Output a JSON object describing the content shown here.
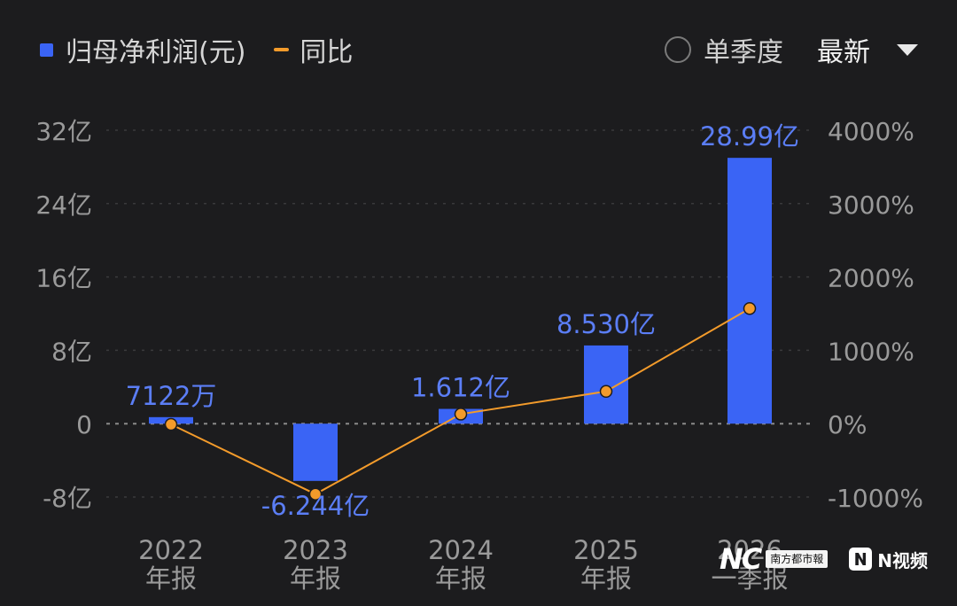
{
  "legend": {
    "bar_label": "归母净利润(元)",
    "line_label": "同比"
  },
  "controls": {
    "single_quarter_label": "单季度",
    "latest_label": "最新"
  },
  "watermark": {
    "brand": "NC",
    "paper": "南方都市報",
    "video_label": "N视频"
  },
  "colors": {
    "bar": "#3a64f5",
    "line": "#f39b2b",
    "data_label": "#5b7ef6",
    "axis_text": "#9a9a9a"
  },
  "chart_data": {
    "type": "bar",
    "categories": [
      [
        "2022",
        "年报"
      ],
      [
        "2023",
        "年报"
      ],
      [
        "2024",
        "年报"
      ],
      [
        "2025",
        "年报"
      ],
      [
        "2026",
        "一季报"
      ]
    ],
    "series": [
      {
        "name": "归母净利润(元)",
        "type": "bar",
        "axis": "left",
        "values": [
          0.7122,
          -6.244,
          1.612,
          8.53,
          28.99
        ],
        "labels": [
          "7122万",
          "-6.244亿",
          "1.612亿",
          "8.530亿",
          "28.99亿"
        ]
      },
      {
        "name": "同比",
        "type": "line",
        "axis": "right",
        "values": [
          -10,
          -960,
          130,
          440,
          1570
        ]
      }
    ],
    "y_left": {
      "range": [
        -8,
        32
      ],
      "ticks": [
        32,
        24,
        16,
        8,
        0,
        -8
      ],
      "tick_labels": [
        "32亿",
        "24亿",
        "16亿",
        "8亿",
        "0",
        "-8亿"
      ]
    },
    "y_right": {
      "range": [
        -1000,
        4000
      ],
      "ticks": [
        4000,
        3000,
        2000,
        1000,
        0,
        -1000
      ],
      "tick_labels": [
        "4000%",
        "3000%",
        "2000%",
        "1000%",
        "0%",
        "-1000%"
      ]
    },
    "grid": true
  }
}
